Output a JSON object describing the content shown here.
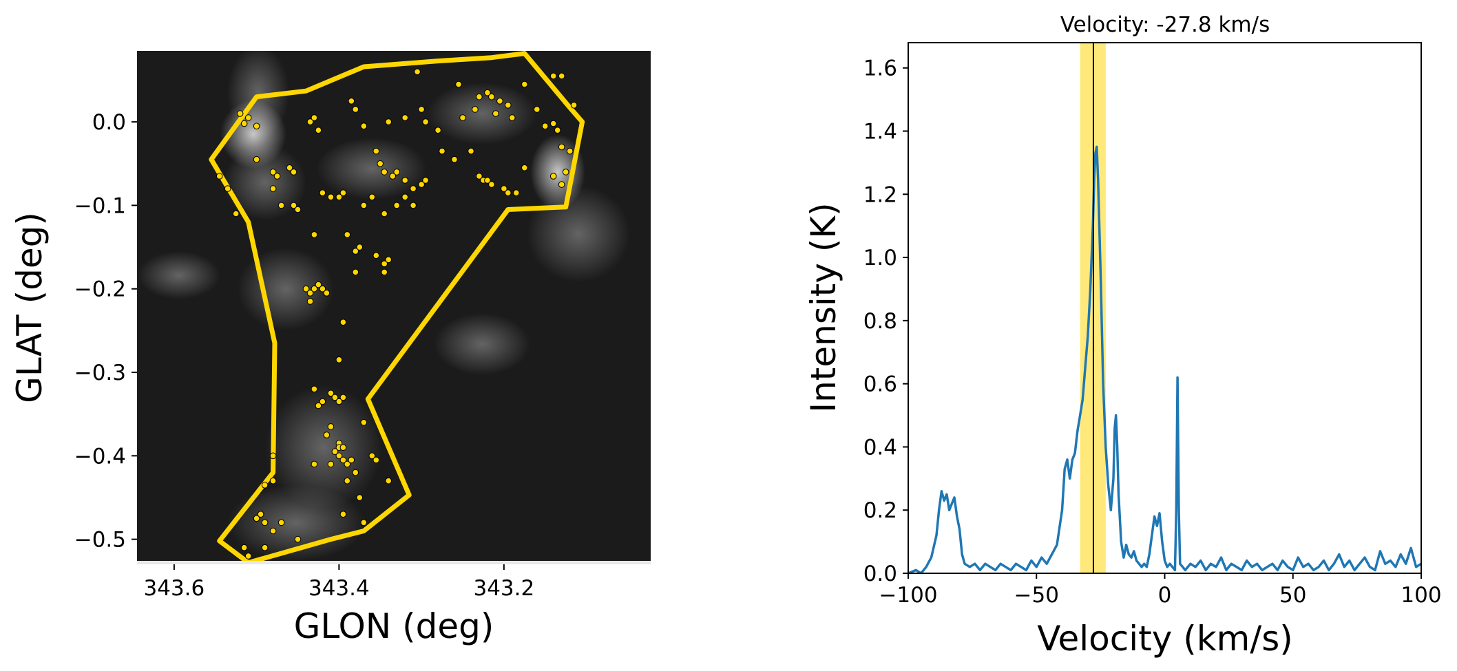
{
  "chart_data": [
    {
      "type": "scatter",
      "xlabel": "GLON (deg)",
      "ylabel": "GLAT (deg)",
      "xlim": [
        343.645,
        343.022
      ],
      "ylim": [
        -0.53,
        0.085
      ],
      "x_ticks": [
        343.6,
        343.4,
        343.2
      ],
      "x_tick_labels": [
        "343.6",
        "343.4",
        "343.2"
      ],
      "y_ticks": [
        0.0,
        -0.1,
        -0.2,
        -0.3,
        -0.4,
        -0.5
      ],
      "y_tick_labels": [
        "0.0",
        "−0.1",
        "−0.2",
        "−0.3",
        "−0.4",
        "−0.5"
      ],
      "background": "grayscale intensity map",
      "polygon": {
        "color": "#FFD700",
        "points": [
          [
            343.5,
            0.03
          ],
          [
            343.44,
            0.037
          ],
          [
            343.37,
            0.066
          ],
          [
            343.28,
            0.073
          ],
          [
            343.215,
            0.077
          ],
          [
            343.175,
            0.082
          ],
          [
            343.12,
            0.017
          ],
          [
            343.105,
            0.0
          ],
          [
            343.125,
            -0.102
          ],
          [
            343.195,
            -0.105
          ],
          [
            343.365,
            -0.332
          ],
          [
            343.315,
            -0.447
          ],
          [
            343.37,
            -0.49
          ],
          [
            343.41,
            -0.5
          ],
          [
            343.51,
            -0.528
          ],
          [
            343.545,
            -0.502
          ],
          [
            343.48,
            -0.42
          ],
          [
            343.478,
            -0.265
          ],
          [
            343.51,
            -0.12
          ],
          [
            343.555,
            -0.045
          ]
        ]
      },
      "points_color": "#FFD700",
      "points": [
        [
          343.52,
          0.01
        ],
        [
          343.51,
          0.005
        ],
        [
          343.5,
          -0.005
        ],
        [
          343.515,
          -0.002
        ],
        [
          343.545,
          -0.065
        ],
        [
          343.535,
          -0.08
        ],
        [
          343.525,
          -0.11
        ],
        [
          343.5,
          -0.045
        ],
        [
          343.48,
          -0.06
        ],
        [
          343.475,
          -0.065
        ],
        [
          343.46,
          -0.055
        ],
        [
          343.455,
          -0.06
        ],
        [
          343.48,
          -0.08
        ],
        [
          343.47,
          -0.1
        ],
        [
          343.455,
          -0.1
        ],
        [
          343.45,
          -0.105
        ],
        [
          343.435,
          0.0
        ],
        [
          343.43,
          0.005
        ],
        [
          343.425,
          -0.01
        ],
        [
          343.42,
          -0.085
        ],
        [
          343.41,
          -0.09
        ],
        [
          343.4,
          -0.09
        ],
        [
          343.395,
          -0.085
        ],
        [
          343.39,
          -0.135
        ],
        [
          343.43,
          -0.135
        ],
        [
          343.38,
          -0.155
        ],
        [
          343.375,
          -0.15
        ],
        [
          343.44,
          -0.2
        ],
        [
          343.435,
          -0.205
        ],
        [
          343.43,
          -0.2
        ],
        [
          343.425,
          -0.195
        ],
        [
          343.42,
          -0.2
        ],
        [
          343.415,
          -0.205
        ],
        [
          343.435,
          -0.215
        ],
        [
          343.38,
          -0.18
        ],
        [
          343.355,
          -0.16
        ],
        [
          343.345,
          -0.17
        ],
        [
          343.34,
          -0.165
        ],
        [
          343.345,
          -0.18
        ],
        [
          343.37,
          -0.005
        ],
        [
          343.38,
          0.015
        ],
        [
          343.385,
          0.025
        ],
        [
          343.355,
          -0.035
        ],
        [
          343.35,
          -0.05
        ],
        [
          343.345,
          -0.06
        ],
        [
          343.33,
          -0.06
        ],
        [
          343.335,
          -0.065
        ],
        [
          343.32,
          -0.07
        ],
        [
          343.31,
          -0.08
        ],
        [
          343.3,
          -0.075
        ],
        [
          343.295,
          -0.07
        ],
        [
          343.32,
          -0.09
        ],
        [
          343.31,
          -0.1
        ],
        [
          343.36,
          -0.09
        ],
        [
          343.37,
          -0.1
        ],
        [
          343.345,
          -0.11
        ],
        [
          343.33,
          -0.1
        ],
        [
          343.34,
          -0.0
        ],
        [
          343.32,
          0.005
        ],
        [
          343.3,
          0.015
        ],
        [
          343.295,
          0.0
        ],
        [
          343.28,
          -0.01
        ],
        [
          343.275,
          -0.035
        ],
        [
          343.26,
          -0.045
        ],
        [
          343.305,
          0.06
        ],
        [
          343.255,
          0.045
        ],
        [
          343.25,
          0.005
        ],
        [
          343.235,
          0.015
        ],
        [
          343.23,
          0.03
        ],
        [
          343.22,
          0.035
        ],
        [
          343.215,
          0.03
        ],
        [
          343.205,
          0.025
        ],
        [
          343.195,
          0.02
        ],
        [
          343.21,
          0.01
        ],
        [
          343.19,
          0.005
        ],
        [
          343.175,
          0.045
        ],
        [
          343.16,
          0.015
        ],
        [
          343.15,
          -0.005
        ],
        [
          343.14,
          -0.002
        ],
        [
          343.135,
          -0.01
        ],
        [
          343.13,
          -0.03
        ],
        [
          343.12,
          -0.035
        ],
        [
          343.115,
          0.02
        ],
        [
          343.14,
          0.055
        ],
        [
          343.13,
          0.055
        ],
        [
          343.24,
          -0.035
        ],
        [
          343.23,
          -0.065
        ],
        [
          343.225,
          -0.07
        ],
        [
          343.22,
          -0.07
        ],
        [
          343.215,
          -0.075
        ],
        [
          343.2,
          -0.08
        ],
        [
          343.195,
          -0.085
        ],
        [
          343.185,
          -0.085
        ],
        [
          343.175,
          -0.055
        ],
        [
          343.14,
          -0.065
        ],
        [
          343.13,
          -0.075
        ],
        [
          343.125,
          -0.06
        ],
        [
          343.135,
          -0.01
        ],
        [
          343.395,
          -0.24
        ],
        [
          343.4,
          -0.285
        ],
        [
          343.43,
          -0.32
        ],
        [
          343.41,
          -0.325
        ],
        [
          343.405,
          -0.33
        ],
        [
          343.4,
          -0.335
        ],
        [
          343.395,
          -0.33
        ],
        [
          343.42,
          -0.335
        ],
        [
          343.425,
          -0.34
        ],
        [
          343.41,
          -0.365
        ],
        [
          343.415,
          -0.375
        ],
        [
          343.4,
          -0.385
        ],
        [
          343.4,
          -0.39
        ],
        [
          343.395,
          -0.39
        ],
        [
          343.405,
          -0.395
        ],
        [
          343.4,
          -0.4
        ],
        [
          343.395,
          -0.405
        ],
        [
          343.39,
          -0.41
        ],
        [
          343.385,
          -0.405
        ],
        [
          343.38,
          -0.42
        ],
        [
          343.39,
          -0.43
        ],
        [
          343.41,
          -0.41
        ],
        [
          343.43,
          -0.41
        ],
        [
          343.48,
          -0.4
        ],
        [
          343.48,
          -0.43
        ],
        [
          343.49,
          -0.435
        ],
        [
          343.37,
          -0.36
        ],
        [
          343.36,
          -0.4
        ],
        [
          343.355,
          -0.405
        ],
        [
          343.37,
          -0.48
        ],
        [
          343.375,
          -0.45
        ],
        [
          343.395,
          -0.47
        ],
        [
          343.45,
          -0.5
        ],
        [
          343.5,
          -0.475
        ],
        [
          343.495,
          -0.47
        ],
        [
          343.49,
          -0.48
        ],
        [
          343.48,
          -0.49
        ],
        [
          343.47,
          -0.48
        ],
        [
          343.515,
          -0.51
        ],
        [
          343.51,
          -0.52
        ],
        [
          343.49,
          -0.51
        ],
        [
          343.34,
          -0.43
        ]
      ]
    },
    {
      "type": "line",
      "title": "Velocity: -27.8 km/s",
      "xlabel": "Velocity (km/s)",
      "ylabel": "Intensity (K)",
      "xlim": [
        -100,
        100
      ],
      "ylim": [
        0.0,
        1.68
      ],
      "x_ticks": [
        -100,
        -50,
        0,
        50,
        100
      ],
      "x_tick_labels": [
        "−100",
        "−50",
        "0",
        "50",
        "100"
      ],
      "y_ticks": [
        0.0,
        0.2,
        0.4,
        0.6,
        0.8,
        1.0,
        1.2,
        1.4,
        1.6
      ],
      "y_tick_labels": [
        "0.0",
        "0.2",
        "0.4",
        "0.6",
        "0.8",
        "1.0",
        "1.2",
        "1.4",
        "1.6"
      ],
      "line_color": "#1f77b4",
      "marker_velocity": -27.8,
      "highlight_range": [
        -33,
        -23
      ],
      "highlight_color": "#FFE97A",
      "series": [
        {
          "x": [
            -100,
            -97,
            -95,
            -93,
            -91,
            -89,
            -88,
            -87,
            -86,
            -85,
            -84,
            -83,
            -82,
            -81,
            -80,
            -79,
            -78,
            -76,
            -74,
            -72,
            -70,
            -68,
            -66,
            -64,
            -62,
            -60,
            -58,
            -56,
            -54,
            -52,
            -50,
            -48,
            -46,
            -44,
            -42,
            -40,
            -39,
            -38,
            -37,
            -36,
            -35,
            -34,
            -33,
            -32,
            -31,
            -30,
            -29,
            -28,
            -27.5,
            -27,
            -26.5,
            -26,
            -25,
            -24,
            -23,
            -22,
            -21,
            -20,
            -19.5,
            -19,
            -18.5,
            -18,
            -17,
            -16,
            -15,
            -14,
            -13,
            -12,
            -11,
            -10,
            -9,
            -8,
            -7,
            -6,
            -5,
            -4,
            -3,
            -2,
            -1,
            0,
            1,
            2,
            3,
            4,
            4.5,
            5,
            5.5,
            6,
            7,
            8,
            10,
            12,
            14,
            16,
            18,
            20,
            22,
            24,
            26,
            28,
            30,
            32,
            34,
            36,
            38,
            40,
            42,
            44,
            46,
            48,
            50,
            52,
            54,
            56,
            58,
            60,
            62,
            64,
            66,
            68,
            70,
            72,
            74,
            76,
            78,
            80,
            82,
            84,
            86,
            88,
            90,
            92,
            94,
            96,
            98,
            100
          ],
          "y": [
            0.0,
            0.01,
            0.0,
            0.02,
            0.05,
            0.12,
            0.2,
            0.26,
            0.23,
            0.25,
            0.2,
            0.22,
            0.24,
            0.18,
            0.14,
            0.06,
            0.03,
            0.02,
            0.03,
            0.01,
            0.03,
            0.02,
            0.01,
            0.03,
            0.02,
            0.01,
            0.03,
            0.02,
            0.01,
            0.04,
            0.02,
            0.05,
            0.03,
            0.06,
            0.09,
            0.2,
            0.33,
            0.36,
            0.3,
            0.36,
            0.38,
            0.45,
            0.5,
            0.55,
            0.65,
            0.75,
            0.9,
            1.1,
            1.25,
            1.33,
            1.35,
            1.25,
            0.95,
            0.6,
            0.4,
            0.28,
            0.2,
            0.3,
            0.46,
            0.5,
            0.4,
            0.25,
            0.1,
            0.05,
            0.09,
            0.06,
            0.05,
            0.07,
            0.04,
            0.03,
            0.02,
            0.03,
            0.02,
            0.06,
            0.12,
            0.18,
            0.15,
            0.19,
            0.1,
            0.04,
            0.02,
            0.03,
            0.02,
            0.01,
            0.2,
            0.62,
            0.2,
            0.03,
            0.02,
            0.01,
            0.03,
            0.02,
            0.04,
            0.01,
            0.03,
            0.02,
            0.05,
            0.01,
            0.03,
            0.02,
            0.01,
            0.04,
            0.02,
            0.03,
            0.01,
            0.02,
            0.03,
            0.01,
            0.04,
            0.02,
            0.01,
            0.05,
            0.02,
            0.03,
            0.01,
            0.02,
            0.04,
            0.01,
            0.03,
            0.06,
            0.02,
            0.04,
            0.01,
            0.03,
            0.05,
            0.02,
            0.01,
            0.07,
            0.03,
            0.04,
            0.02,
            0.06,
            0.03,
            0.08,
            0.02,
            0.03
          ]
        }
      ]
    }
  ]
}
